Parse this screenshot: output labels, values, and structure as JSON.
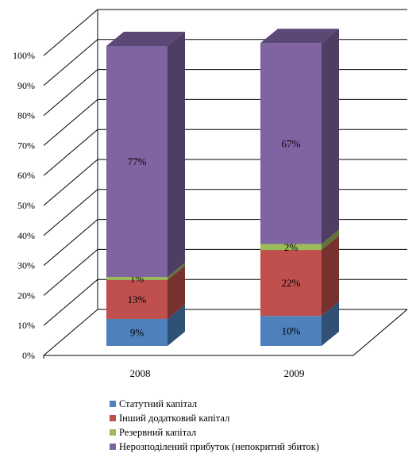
{
  "chart_data": {
    "type": "bar",
    "stacked": true,
    "percent": true,
    "three_d": true,
    "categories": [
      "2008",
      "2009"
    ],
    "series": [
      {
        "name": "Статутний капітал",
        "values": [
          9,
          10
        ],
        "labels": [
          "9%",
          "10%"
        ],
        "color": "#4F81BD"
      },
      {
        "name": "Інший додатковий капітал",
        "values": [
          13,
          22
        ],
        "labels": [
          "13%",
          "22%"
        ],
        "color": "#C0504D"
      },
      {
        "name": "Резервний капітал",
        "values": [
          1,
          2
        ],
        "labels": [
          "1%",
          "2%"
        ],
        "color": "#9BBB59"
      },
      {
        "name": "Нерозподілений прибуток (непокритий збиток)",
        "values": [
          77,
          67
        ],
        "labels": [
          "77%",
          "67%"
        ],
        "color": "#8064A2"
      }
    ],
    "y_ticks": [
      "0%",
      "10%",
      "20%",
      "30%",
      "40%",
      "50%",
      "60%",
      "70%",
      "80%",
      "90%",
      "100%"
    ],
    "ylim": [
      0,
      100
    ],
    "grid": true,
    "legend_position": "bottom"
  }
}
